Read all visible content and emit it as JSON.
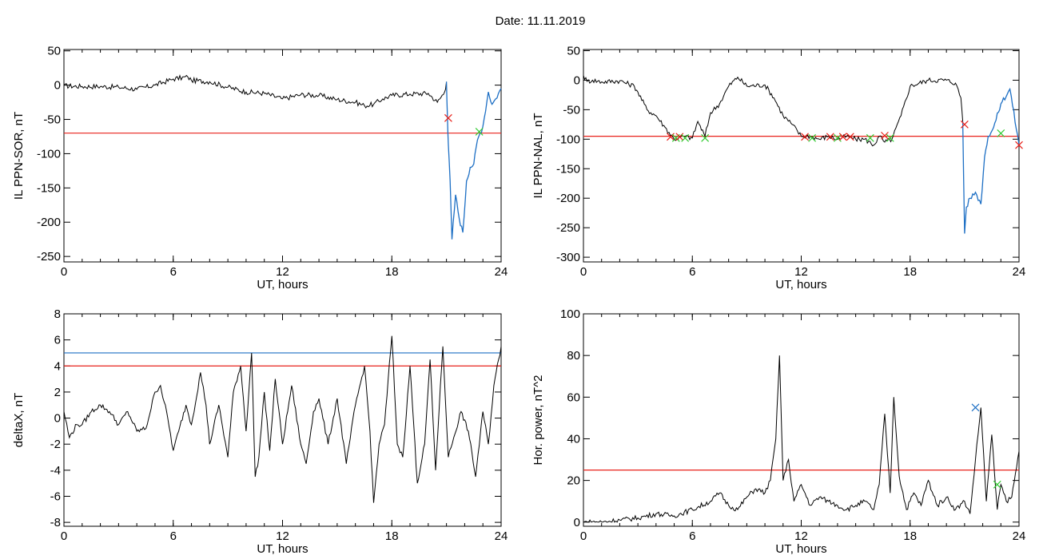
{
  "header": {
    "title": "Date:  11.11.2019"
  },
  "colors": {
    "series": "#000000",
    "threshold_red": "#e8211a",
    "threshold_blue": "#1d6fc4",
    "highlight_blue": "#1d6fc4",
    "marker_red": "#e8211a",
    "marker_green": "#33cc33",
    "marker_blue": "#1d6fc4"
  },
  "chart_data": [
    {
      "type": "line",
      "id": "sor",
      "xlabel": "UT, hours",
      "ylabel": "IL PPN-SOR, nT",
      "xlim": [
        0,
        24
      ],
      "ylim": [
        -258,
        52
      ],
      "xticks": [
        0,
        6,
        12,
        18,
        24
      ],
      "yticks": [
        50,
        0,
        -50,
        -100,
        -150,
        -200,
        -250
      ],
      "threshold": -70,
      "x": [
        0,
        1,
        2,
        3,
        4,
        5,
        6,
        6.8,
        7,
        8,
        9,
        10,
        11,
        12,
        13,
        14,
        15,
        16,
        16.5,
        17,
        17.5,
        18,
        19,
        20,
        20.5,
        20.9,
        21.0,
        21.05,
        21.1,
        21.2,
        21.3,
        21.5,
        21.7,
        21.9,
        22.1,
        22.3,
        22.5,
        22.7,
        23,
        23.3,
        23.5,
        23.7,
        24
      ],
      "y": [
        -1,
        -2,
        -2,
        -3,
        -6,
        0,
        9,
        12,
        7,
        5,
        -3,
        -10,
        -12,
        -20,
        -14,
        -15,
        -21,
        -25,
        -30,
        -28,
        -20,
        -15,
        -13,
        -12,
        -25,
        -10,
        5,
        -45,
        -85,
        -140,
        -225,
        -160,
        -195,
        -215,
        -140,
        -120,
        -115,
        -80,
        -60,
        -10,
        -28,
        -20,
        -5
      ],
      "highlight_from": 21.0,
      "markers": [
        {
          "x": 21.1,
          "y": -48,
          "color": "red"
        },
        {
          "x": 22.8,
          "y": -68,
          "color": "green"
        }
      ]
    },
    {
      "type": "line",
      "id": "nal",
      "xlabel": "UT, hours",
      "ylabel": "IL PPN-NAL, nT",
      "xlim": [
        0,
        24
      ],
      "ylim": [
        -308,
        52
      ],
      "xticks": [
        0,
        6,
        12,
        18,
        24
      ],
      "yticks": [
        50,
        0,
        -50,
        -100,
        -150,
        -200,
        -250,
        -300
      ],
      "threshold": -95,
      "x": [
        0,
        0.2,
        0.5,
        1,
        2,
        2.8,
        3,
        3.5,
        4,
        4.5,
        5,
        5.5,
        6,
        6.3,
        6.7,
        7,
        7.5,
        8,
        8.5,
        9,
        10,
        10.5,
        11,
        11.5,
        12,
        12.5,
        13,
        13.5,
        14,
        14.5,
        15,
        15.5,
        16,
        16.3,
        16.6,
        17,
        17.5,
        18,
        19,
        20,
        20.5,
        20.8,
        20.9,
        21.0,
        21.1,
        21.3,
        21.6,
        21.9,
        22.1,
        22.3,
        22.6,
        23,
        23.5,
        24
      ],
      "y": [
        8,
        -2,
        0,
        -3,
        -1,
        -10,
        -20,
        -50,
        -60,
        -80,
        -100,
        -95,
        -98,
        -70,
        -95,
        -55,
        -40,
        -10,
        5,
        -10,
        -8,
        -30,
        -60,
        -75,
        -95,
        -95,
        -100,
        -95,
        -100,
        -95,
        -100,
        -100,
        -110,
        -95,
        -105,
        -100,
        -60,
        -10,
        0,
        0,
        -5,
        -30,
        -70,
        -260,
        -215,
        -200,
        -190,
        -210,
        -130,
        -95,
        -80,
        -40,
        -15,
        -110
      ],
      "highlight_from": 20.9,
      "markers": [
        {
          "x": 4.8,
          "y": -96,
          "color": "red"
        },
        {
          "x": 5.1,
          "y": -98,
          "color": "green"
        },
        {
          "x": 5.3,
          "y": -96,
          "color": "red"
        },
        {
          "x": 5.6,
          "y": -98,
          "color": "green"
        },
        {
          "x": 6.7,
          "y": -98,
          "color": "green"
        },
        {
          "x": 12.2,
          "y": -96,
          "color": "red"
        },
        {
          "x": 12.6,
          "y": -98,
          "color": "green"
        },
        {
          "x": 13.6,
          "y": -96,
          "color": "red"
        },
        {
          "x": 14.0,
          "y": -98,
          "color": "green"
        },
        {
          "x": 14.3,
          "y": -96,
          "color": "red"
        },
        {
          "x": 14.7,
          "y": -96,
          "color": "red"
        },
        {
          "x": 15.8,
          "y": -98,
          "color": "green"
        },
        {
          "x": 16.6,
          "y": -94,
          "color": "red"
        },
        {
          "x": 16.9,
          "y": -98,
          "color": "green"
        },
        {
          "x": 21.0,
          "y": -75,
          "color": "red"
        },
        {
          "x": 23.0,
          "y": -90,
          "color": "green"
        },
        {
          "x": 24.0,
          "y": -110,
          "color": "red"
        }
      ]
    },
    {
      "type": "line",
      "id": "deltax",
      "xlabel": "UT, hours",
      "ylabel": "deltaX, nT",
      "xlim": [
        0,
        24
      ],
      "ylim": [
        -8.3,
        8
      ],
      "xticks": [
        0,
        6,
        12,
        18,
        24
      ],
      "yticks": [
        8,
        6,
        4,
        2,
        0,
        -2,
        -4,
        -6,
        -8
      ],
      "thresholds": [
        {
          "value": 5,
          "color": "blue"
        },
        {
          "value": 4,
          "color": "red"
        }
      ],
      "x": [
        0,
        0.3,
        0.7,
        1,
        1.5,
        2,
        2.5,
        3,
        3.5,
        4,
        4.5,
        5,
        5.3,
        5.7,
        6,
        6.3,
        6.7,
        7,
        7.5,
        7.8,
        8,
        8.5,
        9,
        9.3,
        9.7,
        10,
        10.3,
        10.5,
        10.7,
        11,
        11.3,
        11.6,
        12,
        12.5,
        13,
        13.3,
        13.7,
        14,
        14.5,
        15,
        15.5,
        16,
        16.5,
        16.8,
        17,
        17.3,
        17.6,
        18,
        18.3,
        18.6,
        19,
        19.4,
        19.8,
        20.1,
        20.4,
        20.8,
        21.1,
        21.4,
        21.8,
        22.2,
        22.6,
        23,
        23.3,
        23.6,
        24
      ],
      "y": [
        0.5,
        -1.5,
        -0.5,
        -0.5,
        0.5,
        1,
        0.5,
        -0.5,
        0.5,
        -1,
        -0.8,
        2,
        2.5,
        0,
        -2.5,
        -1,
        1,
        -0.5,
        3.5,
        1,
        -2,
        1,
        -3,
        2,
        4,
        -1,
        5,
        -4.5,
        -3,
        2,
        -2.5,
        3,
        -2,
        2.5,
        -2,
        -3.5,
        0.5,
        1.5,
        -2,
        1.5,
        -3.5,
        1,
        4,
        -1,
        -6.5,
        -2,
        -0.5,
        6.3,
        -2,
        -3,
        4,
        -5,
        -2,
        4.5,
        -4,
        5.5,
        -3,
        -1.5,
        0.5,
        -1,
        -4.5,
        0.5,
        -2,
        2.5,
        5.5
      ]
    },
    {
      "type": "line",
      "id": "power",
      "xlabel": "UT, hours",
      "ylabel": "Hor. power, nT^2",
      "xlim": [
        0,
        24
      ],
      "ylim": [
        -2,
        100
      ],
      "xticks": [
        0,
        6,
        12,
        18,
        24
      ],
      "yticks": [
        100,
        80,
        60,
        40,
        20,
        0
      ],
      "threshold": 25,
      "x": [
        0,
        1,
        2,
        3,
        4,
        5,
        6,
        7,
        7.5,
        8,
        8.5,
        9,
        9.5,
        10,
        10.3,
        10.6,
        10.8,
        11,
        11.3,
        11.6,
        12,
        12.5,
        13,
        13.5,
        14,
        14.5,
        15,
        15.5,
        16,
        16.3,
        16.6,
        16.9,
        17.1,
        17.4,
        17.8,
        18.2,
        18.6,
        19,
        19.5,
        20,
        20.5,
        21,
        21.3,
        21.6,
        21.9,
        22.2,
        22.5,
        22.8,
        23,
        23.3,
        23.6,
        24
      ],
      "y": [
        0,
        0,
        1,
        2,
        4,
        3,
        6,
        10,
        14,
        8,
        6,
        12,
        16,
        14,
        20,
        40,
        80,
        20,
        30,
        10,
        18,
        8,
        12,
        10,
        8,
        6,
        8,
        10,
        6,
        18,
        52,
        14,
        60,
        22,
        6,
        14,
        8,
        20,
        8,
        12,
        6,
        10,
        4,
        30,
        55,
        10,
        42,
        6,
        18,
        10,
        12,
        34
      ],
      "markers": [
        {
          "x": 21.6,
          "y": 55,
          "color": "blue"
        },
        {
          "x": 22.8,
          "y": 18,
          "color": "green"
        }
      ]
    }
  ]
}
